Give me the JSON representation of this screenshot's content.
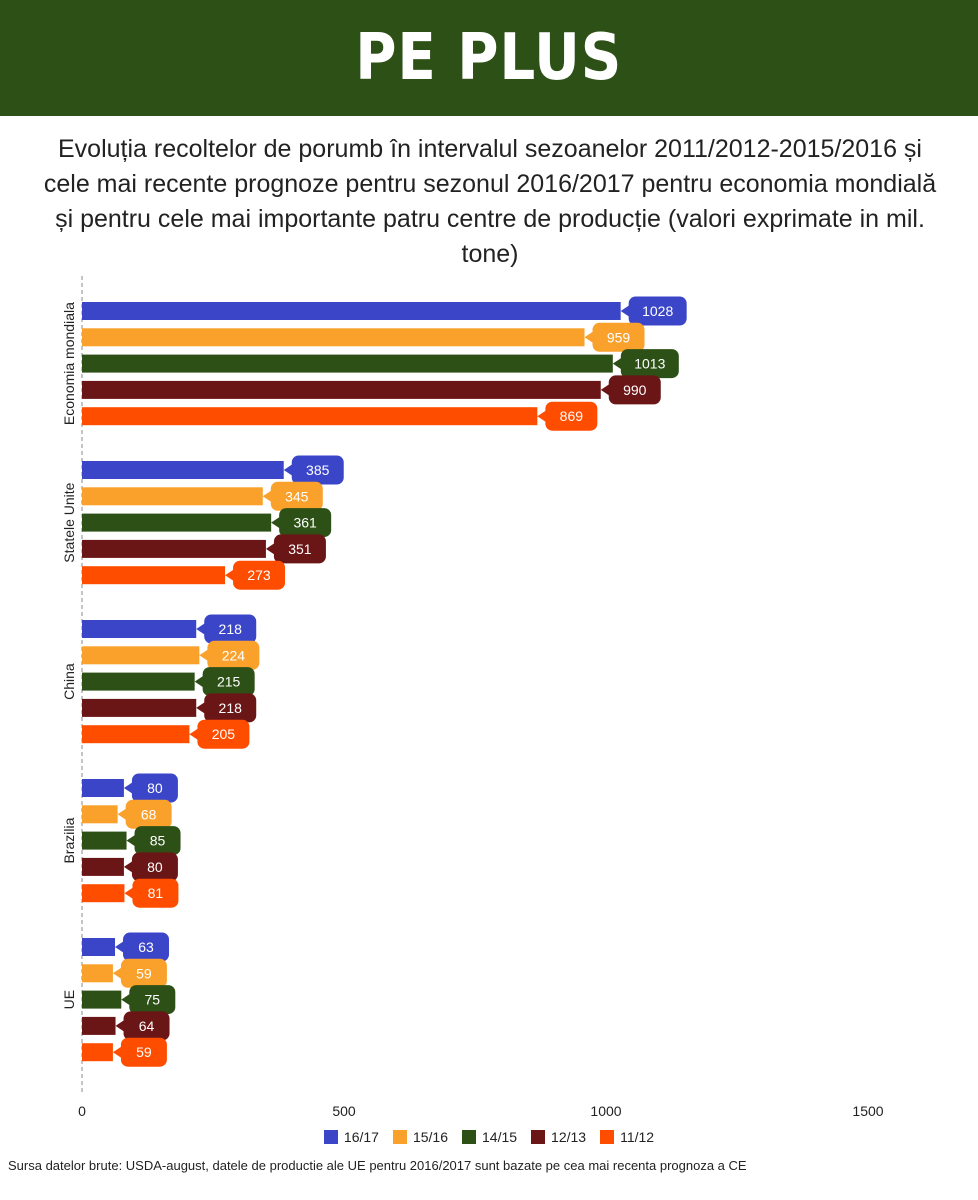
{
  "banner": {
    "text": "PE PLUS"
  },
  "chart_data": {
    "type": "bar",
    "orientation": "horizontal",
    "title": "Evoluția recoltelor de porumb în intervalul sezoanelor 2011/2012-2015/2016 și cele mai recente prognoze pentru sezonul 2016/2017 pentru economia mondială și pentru cele mai importante patru centre de producție (valori exprimate in mil. tone)",
    "categories": [
      "Economia mondiala",
      "Statele Unite",
      "China",
      "Brazilia",
      "UE"
    ],
    "series": [
      {
        "name": "16/17",
        "color": "#3b45c8",
        "values": [
          1028,
          385,
          218,
          80,
          63
        ]
      },
      {
        "name": "15/16",
        "color": "#f9a12b",
        "values": [
          959,
          345,
          224,
          68,
          59
        ]
      },
      {
        "name": "14/15",
        "color": "#2d5016",
        "values": [
          1013,
          361,
          215,
          85,
          75
        ]
      },
      {
        "name": "12/13",
        "color": "#6b1616",
        "values": [
          990,
          351,
          218,
          80,
          64
        ]
      },
      {
        "name": "11/12",
        "color": "#ff4d00",
        "values": [
          869,
          273,
          205,
          81,
          59
        ]
      }
    ],
    "xlim": [
      0,
      1500
    ],
    "xticks": [
      0,
      500,
      1000,
      1500
    ],
    "legend_position": "bottom",
    "grid": false
  },
  "footer": {
    "source": "Sursa datelor brute: USDA-august, datele de productie ale UE pentru 2016/2017 sunt bazate pe cea mai recenta prognoza a CE"
  }
}
